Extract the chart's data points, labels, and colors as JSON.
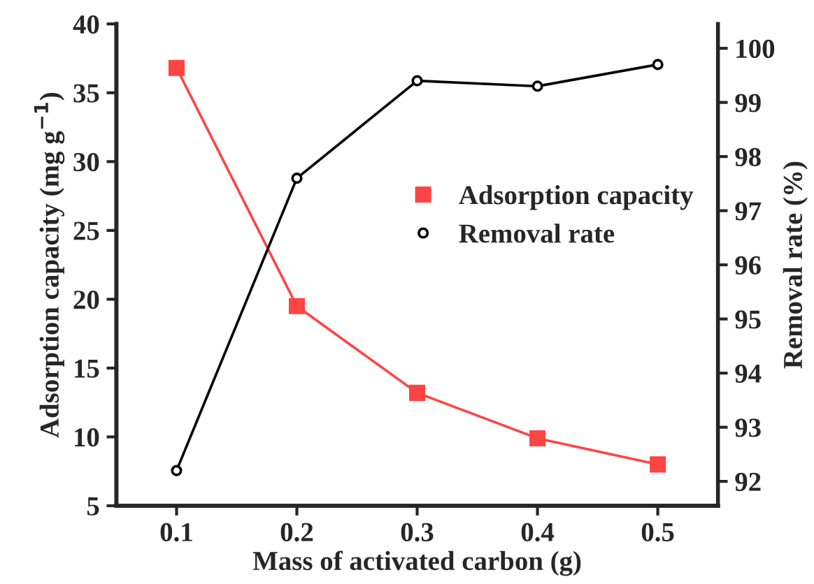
{
  "chart_data": {
    "type": "line",
    "xlabel": "Mass of activated carbon (g)",
    "ylabel": "Adsorption capacity (mg g$^{−1}$)",
    "y2label": "Removal rate (%)",
    "x": [
      0.1,
      0.2,
      0.3,
      0.4,
      0.5
    ],
    "series": [
      {
        "name": "Adsorption capacity",
        "color": "#ff4444",
        "values": [
          36.8,
          19.5,
          13.2,
          9.9,
          8.0
        ],
        "marker": "square"
      },
      {
        "name": "Removal rate",
        "color": "#000000",
        "values": [
          92.2,
          97.6,
          99.4,
          99.3,
          99.7
        ],
        "marker": "circle",
        "axis": "y2"
      }
    ],
    "xlim": [
      0.05,
      0.55
    ],
    "xticks": [
      0.1,
      0.2,
      0.3,
      0.4,
      0.5
    ],
    "ylim": [
      5,
      40
    ],
    "yticks": [
      5,
      10,
      15,
      20,
      25,
      30,
      35,
      40
    ],
    "y2lim": [
      91.55,
      100.45
    ],
    "y2ticks": [
      92,
      93,
      94,
      95,
      96,
      97,
      98,
      99,
      100
    ],
    "grid": false,
    "legend": "right"
  }
}
